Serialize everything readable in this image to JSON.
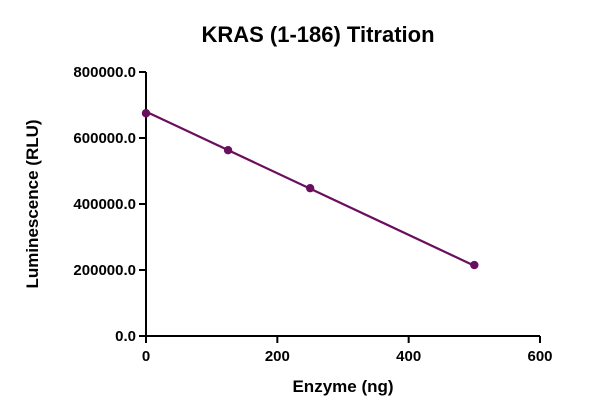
{
  "chart_data": {
    "type": "line",
    "title": "KRAS (1-186) Titration",
    "xlabel": "Enzyme (ng)",
    "ylabel": "Luminescence (RLU)",
    "xlim": [
      0,
      600
    ],
    "ylim": [
      0,
      800000
    ],
    "x_ticks": [
      "0",
      "200",
      "400",
      "600"
    ],
    "y_ticks": [
      "0.0",
      "200000.0",
      "400000.0",
      "600000.0",
      "800000.0"
    ],
    "x_tick_values": [
      0,
      200,
      400,
      600
    ],
    "y_tick_values": [
      0,
      200000,
      400000,
      600000,
      800000
    ],
    "series": [
      {
        "x": [
          0,
          125,
          250,
          500
        ],
        "y": [
          675000,
          563000,
          448000,
          215000
        ],
        "color": "#6a0f5e"
      }
    ],
    "fit_line": {
      "x": [
        0,
        500
      ],
      "y": [
        680000,
        213000
      ]
    },
    "grid": false,
    "legend": "none"
  }
}
